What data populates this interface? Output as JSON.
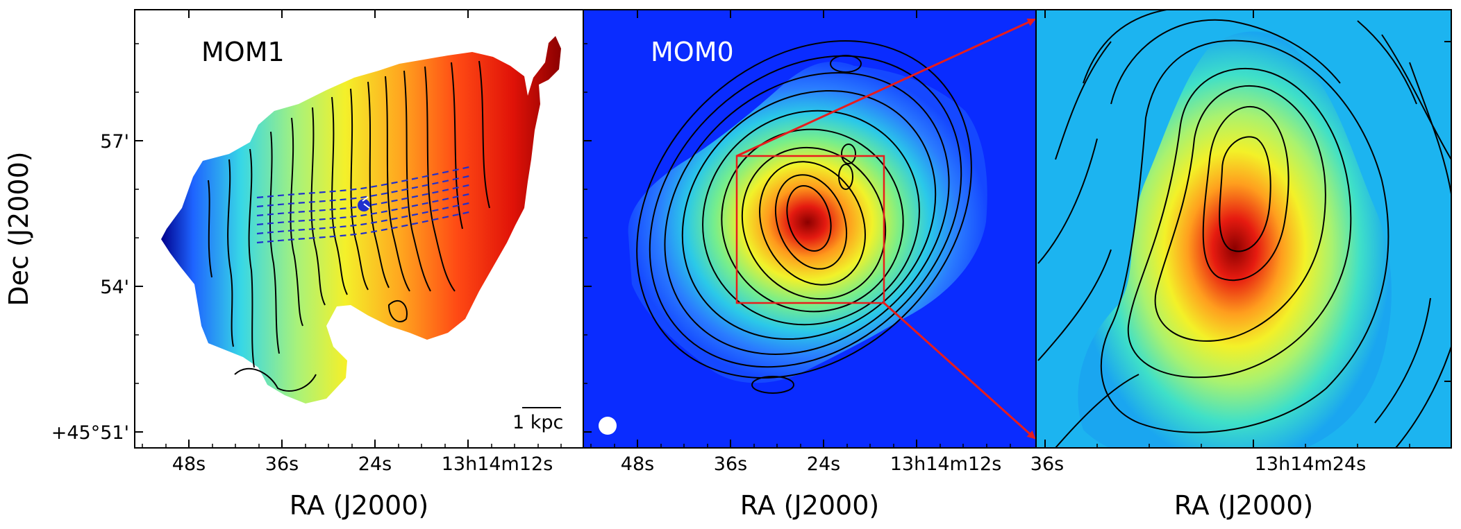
{
  "panels": [
    {
      "title": "MOM1",
      "title_color": "#000000"
    },
    {
      "title": "MOM0",
      "title_color": "#ffffff"
    },
    {
      "title": ""
    }
  ],
  "axes": {
    "ylabel": "Dec (J2000)",
    "xlabel": "RA (J2000)",
    "y_ticks": [
      "57'",
      "54'",
      "+45°51'"
    ],
    "panel1_x_ticks": [
      "48s",
      "36s",
      "24s",
      "13h14m12s"
    ],
    "panel2_x_ticks": [
      "48s",
      "36s",
      "24s",
      "13h14m12s"
    ],
    "panel3_x_ticks": [
      "36s",
      "13h14m24s"
    ]
  },
  "scalebar_label": "1 kpc",
  "colors": {
    "mom0_background": "#0a2cff",
    "zoom_box": "#e81c1c",
    "slit_lines": "#1f2fcf",
    "beam": "#ffffff"
  },
  "icons": {
    "beam": "beam-circle-icon",
    "arrow": "zoom-arrow-icon"
  }
}
